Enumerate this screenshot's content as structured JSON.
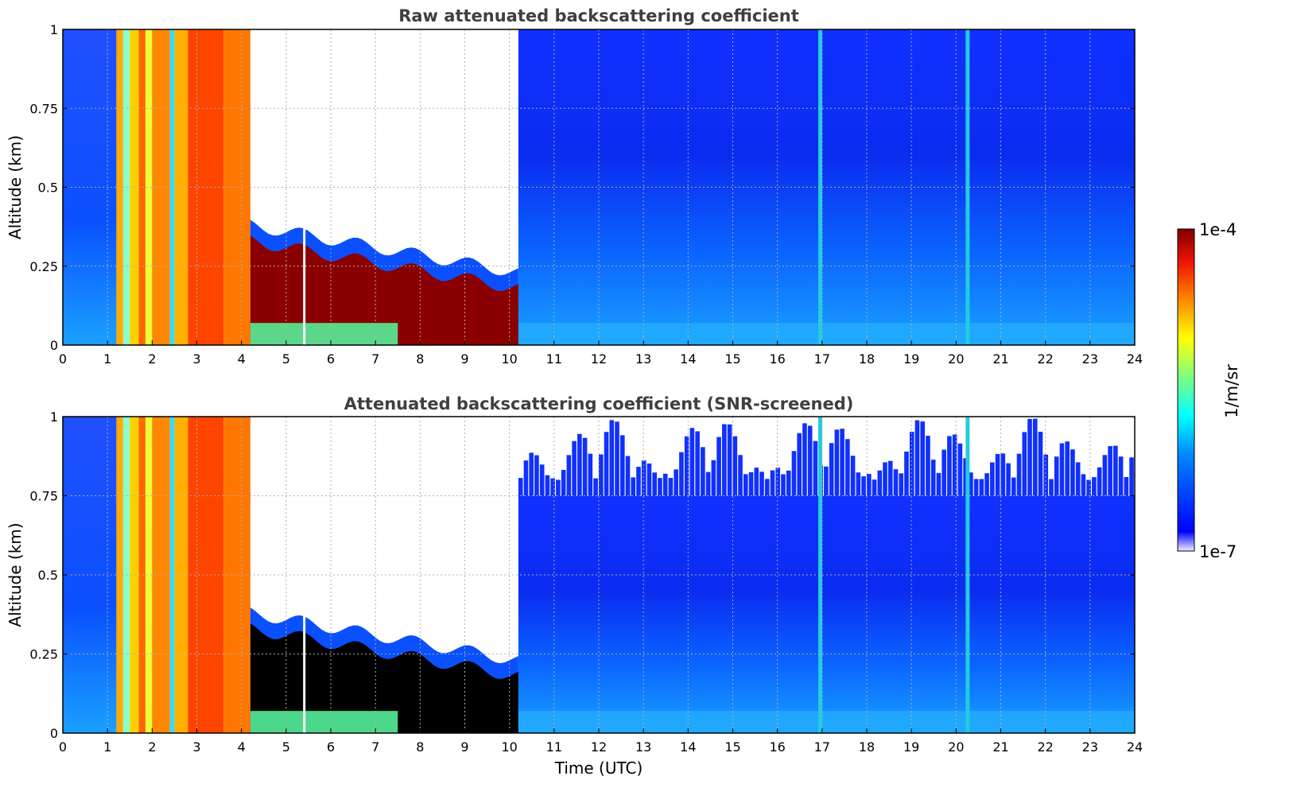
{
  "chart_data": [
    {
      "type": "heatmap",
      "title": "Raw attenuated backscattering coefficient",
      "xlabel": "",
      "ylabel": "Altitude (km)",
      "xlim": [
        0,
        24
      ],
      "ylim": [
        0,
        1
      ],
      "xticks": [
        "0",
        "1",
        "2",
        "3",
        "4",
        "5",
        "6",
        "7",
        "8",
        "9",
        "10",
        "11",
        "12",
        "13",
        "14",
        "15",
        "16",
        "17",
        "18",
        "19",
        "20",
        "21",
        "22",
        "23",
        "24"
      ],
      "yticks": [
        "0",
        "0.25",
        "0.5",
        "0.75",
        "1"
      ],
      "grid": true,
      "snr_screened": false,
      "features": [
        {
          "kind": "fog_layer",
          "x_range": [
            0.0,
            4.2
          ],
          "altitude_km": [
            0.0,
            1.0
          ],
          "level": "high"
        },
        {
          "kind": "cloud_layer",
          "x_range": [
            4.2,
            10.2
          ],
          "top_km_start": 0.33,
          "top_km_end": 0.18,
          "level": "very_high"
        },
        {
          "kind": "clear_sky",
          "x_range": [
            10.2,
            24.0
          ],
          "level": "low"
        },
        {
          "kind": "vertical_streak",
          "x": 16.95
        },
        {
          "kind": "vertical_streak",
          "x": 20.25
        }
      ]
    },
    {
      "type": "heatmap",
      "title": "Attenuated backscattering coefficient (SNR-screened)",
      "xlabel": "Time (UTC)",
      "ylabel": "Altitude (km)",
      "xlim": [
        0,
        24
      ],
      "ylim": [
        0,
        1
      ],
      "xticks": [
        "0",
        "1",
        "2",
        "3",
        "4",
        "5",
        "6",
        "7",
        "8",
        "9",
        "10",
        "11",
        "12",
        "13",
        "14",
        "15",
        "16",
        "17",
        "18",
        "19",
        "20",
        "21",
        "22",
        "23",
        "24"
      ],
      "yticks": [
        "0",
        "0.25",
        "0.5",
        "0.75",
        "1"
      ],
      "grid": true,
      "snr_screened": true,
      "features": [
        {
          "kind": "fog_layer",
          "x_range": [
            0.0,
            4.2
          ],
          "altitude_km": [
            0.0,
            1.0
          ],
          "level": "high"
        },
        {
          "kind": "cloud_layer",
          "x_range": [
            4.2,
            10.2
          ],
          "top_km_start": 0.33,
          "top_km_end": 0.18,
          "level": "saturated"
        },
        {
          "kind": "clear_sky",
          "x_range": [
            10.2,
            24.0
          ],
          "level": "low"
        },
        {
          "kind": "vertical_streak",
          "x": 16.95
        },
        {
          "kind": "vertical_streak",
          "x": 20.25
        }
      ]
    }
  ],
  "colorbar": {
    "label": "1/m/sr",
    "max_label": "1e-4",
    "min_label": "1e-7",
    "colormap": "jet",
    "min_color": "#eeeeff",
    "max_color": "#800000"
  }
}
